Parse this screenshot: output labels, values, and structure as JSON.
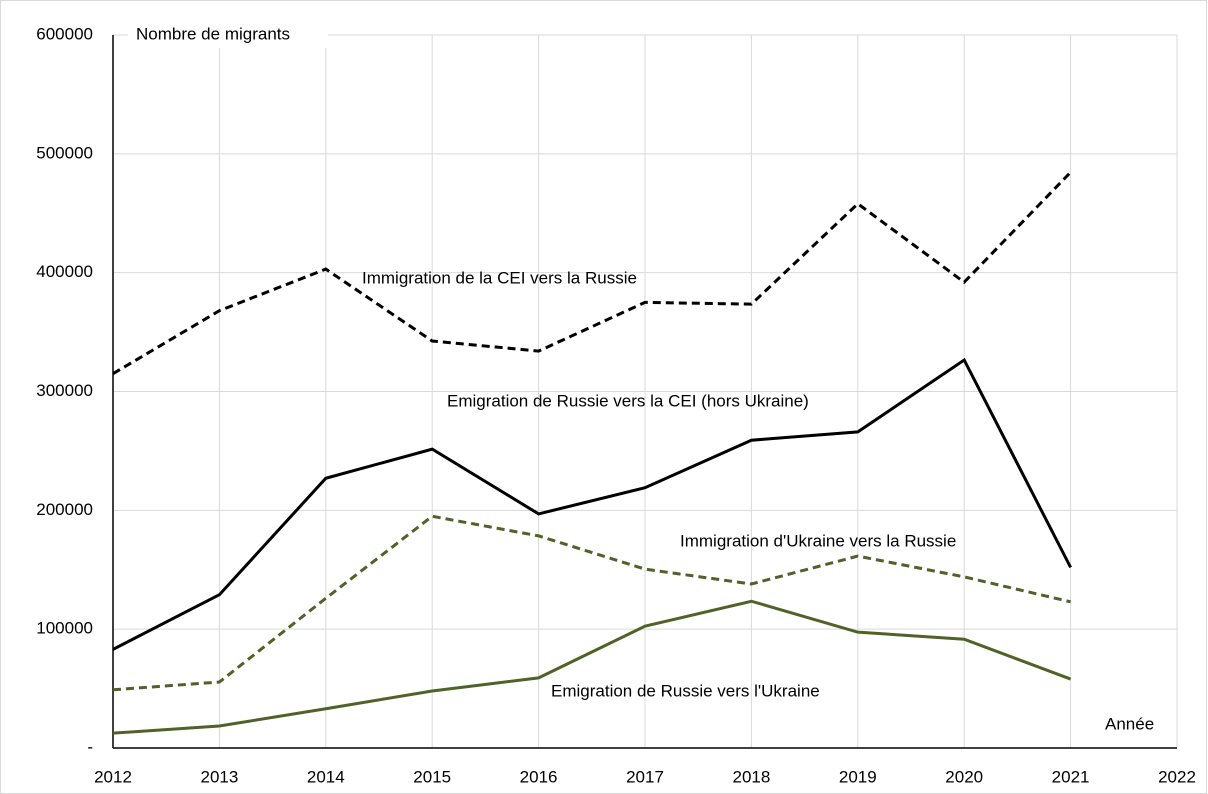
{
  "chart_data": {
    "type": "line",
    "x": [
      2012,
      2013,
      2014,
      2015,
      2016,
      2017,
      2018,
      2019,
      2020,
      2021
    ],
    "series": [
      {
        "name": "Immigration de la CEI vers la Russie",
        "color": "#000000",
        "dashed": true,
        "values": [
          315000,
          368000,
          403000,
          342500,
          334000,
          375000,
          373500,
          458000,
          392000,
          484500
        ]
      },
      {
        "name": "Emigration de Russie vers la CEI (hors Ukraine)",
        "color": "#000000",
        "dashed": false,
        "values": [
          83000,
          129000,
          227000,
          251500,
          197000,
          219000,
          259000,
          266000,
          326500,
          152000
        ]
      },
      {
        "name": "Immigration d'Ukraine vers la Russie",
        "color": "#4f6228",
        "dashed": true,
        "values": [
          49000,
          55500,
          126000,
          195000,
          178500,
          150500,
          138000,
          161500,
          144000,
          123000
        ]
      },
      {
        "name": "Emigration de Russie vers l'Ukraine",
        "color": "#4f6228",
        "dashed": false,
        "values": [
          12500,
          18500,
          33000,
          48000,
          59000,
          102500,
          123500,
          97500,
          91500,
          58000
        ]
      }
    ],
    "y_label": "Nombre de migrants",
    "x_label": "Année",
    "xlim": [
      2012,
      2022
    ],
    "xticks": [
      2012,
      2013,
      2014,
      2015,
      2016,
      2017,
      2018,
      2019,
      2020,
      2021,
      2022
    ],
    "ylim": [
      0,
      600000
    ],
    "yticks": [
      {
        "value": 0,
        "label": "-"
      },
      100000,
      200000,
      300000,
      400000,
      500000,
      600000
    ],
    "grid": true
  }
}
